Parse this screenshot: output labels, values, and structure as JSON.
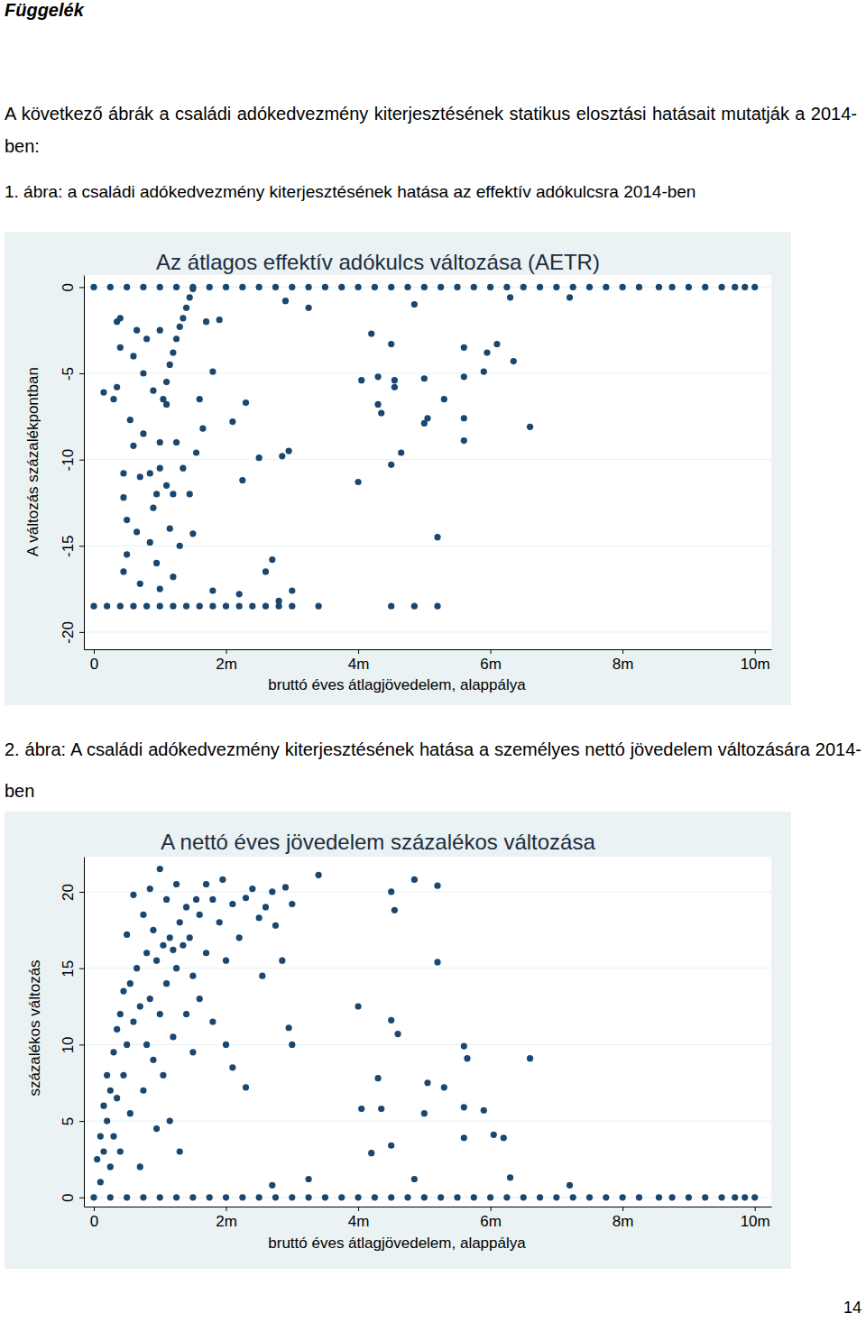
{
  "page": {
    "header": "Függelék",
    "intro": "A következő ábrák a családi adókedvezmény kiterjesztésének statikus elosztási hatásait mutatják a 2014-ben:",
    "captions": [
      "1. ábra: a családi adókedvezmény kiterjesztésének hatása az effektív adókulcsra 2014-ben",
      "2. ábra: A családi adókedvezmény kiterjesztésének hatása a személyes nettó jövedelem változására 2014-ben"
    ],
    "page_number": "14"
  },
  "chart_data": [
    {
      "type": "scatter",
      "title": "Az átlagos effektív adókulcs változása (AETR)",
      "x_label": "bruttó éves átlagjövedelem, alappálya",
      "y_label": "A változás százalékpontban",
      "color": "#1a476f",
      "marker": "circle",
      "grid": true,
      "xlim": [
        -150000,
        10250000
      ],
      "xticks": [
        0,
        {
          "value": 2000000,
          "label": "2m"
        },
        {
          "value": 4000000,
          "label": "4m"
        },
        {
          "value": 6000000,
          "label": "6m"
        },
        {
          "value": 8000000,
          "label": "8m"
        },
        {
          "value": 10000000,
          "label": "10m"
        }
      ],
      "ylim": [
        -21,
        0.7
      ],
      "yticks": [
        -20,
        -15,
        -10,
        -5,
        0
      ],
      "x": [
        0,
        250000,
        500000,
        750000,
        1000000,
        1250000,
        1500000,
        1750000,
        2000000,
        2250000,
        2500000,
        2750000,
        3000000,
        3250000,
        3500000,
        3750000,
        4000000,
        4250000,
        4500000,
        4750000,
        5000000,
        5250000,
        5500000,
        5750000,
        6000000,
        6250000,
        6500000,
        6750000,
        7000000,
        7250000,
        7500000,
        7750000,
        8000000,
        8250000,
        8550000,
        8750000,
        9000000,
        9250000,
        9500000,
        9700000,
        9850000,
        10000000,
        0,
        200000,
        400000,
        600000,
        800000,
        1000000,
        1200000,
        1400000,
        1600000,
        1800000,
        2000000,
        2200000,
        2400000,
        2600000,
        2800000,
        3000000,
        3400000,
        4500000,
        4850000,
        5200000,
        1050000,
        1100000,
        1150000,
        1200000,
        1250000,
        1300000,
        1350000,
        1400000,
        1450000,
        1500000,
        1100000,
        1000000,
        1000000,
        950000,
        150000,
        300000,
        350000,
        400000,
        350000,
        400000,
        450000,
        450000,
        500000,
        500000,
        450000,
        550000,
        600000,
        600000,
        650000,
        650000,
        700000,
        700000,
        750000,
        750000,
        800000,
        850000,
        850000,
        900000,
        900000,
        950000,
        1000000,
        1000000,
        1100000,
        1150000,
        1200000,
        1200000,
        1250000,
        1300000,
        1350000,
        1450000,
        1500000,
        1550000,
        1600000,
        1650000,
        1700000,
        1800000,
        1900000,
        2100000,
        2250000,
        2300000,
        2500000,
        2600000,
        2700000,
        2850000,
        2950000,
        3000000,
        2800000,
        2200000,
        1800000,
        2900000,
        3250000,
        4000000,
        4050000,
        4200000,
        4300000,
        4300000,
        4350000,
        4500000,
        4500000,
        4550000,
        4550000,
        4650000,
        4850000,
        5000000,
        5000000,
        5050000,
        5200000,
        5300000,
        5600000,
        5600000,
        5600000,
        5600000,
        5900000,
        5950000,
        6100000,
        6300000,
        6350000,
        6600000,
        7200000
      ],
      "values": [
        0,
        0,
        0,
        0,
        0,
        0,
        0,
        0,
        0,
        0,
        0,
        0,
        0,
        0,
        0,
        0,
        0,
        0,
        0,
        0,
        0,
        0,
        0,
        0,
        0,
        0,
        0,
        0,
        0,
        0,
        0,
        0,
        0,
        0,
        0,
        0,
        0,
        0,
        0,
        0,
        0,
        0,
        -18.5,
        -18.5,
        -18.5,
        -18.5,
        -18.5,
        -18.5,
        -18.5,
        -18.5,
        -18.5,
        -18.5,
        -18.5,
        -18.5,
        -18.5,
        -18.5,
        -18.5,
        -18.5,
        -18.5,
        -18.5,
        -18.5,
        -18.5,
        -6.5,
        -5.5,
        -4.5,
        -3.8,
        -3,
        -2.3,
        -1.8,
        -1.2,
        -0.6,
        -0.1,
        -6.8,
        -9,
        -10.5,
        -12,
        -6.1,
        -6.5,
        -5.8,
        -3.5,
        -2,
        -1.8,
        -10.8,
        -12.2,
        -13.5,
        -15.5,
        -16.5,
        -7.7,
        -9.2,
        -4,
        -2.5,
        -14.2,
        -11,
        -17.2,
        -5,
        -8.5,
        -3,
        -10.8,
        -14.8,
        -6,
        -12.8,
        -16,
        -2.5,
        -17.5,
        -11.5,
        -14,
        -12,
        -16.8,
        -9,
        -15,
        -10.5,
        -12,
        -14.3,
        -9.6,
        -6.5,
        -8.2,
        -2,
        -4.9,
        -1.9,
        -7.8,
        -11.2,
        -6.7,
        -9.9,
        -16.5,
        -15.8,
        -9.8,
        -9.5,
        -17.6,
        -18.2,
        -17.8,
        -17.6,
        -0.8,
        -1.2,
        -11.3,
        -5.4,
        -2.7,
        -5.2,
        -6.8,
        -7.3,
        -3.3,
        -10.3,
        -5.4,
        -5.8,
        -9.6,
        -1,
        -5.3,
        -7.9,
        -7.6,
        -14.5,
        -6.5,
        -3.5,
        -5.2,
        -7.6,
        -8.9,
        -4.9,
        -3.8,
        -3.3,
        -0.6,
        -4.3,
        -8.1,
        -0.6
      ]
    },
    {
      "type": "scatter",
      "title": "A nettó éves jövedelem százalékos változása",
      "x_label": "bruttó éves átlagjövedelem, alappálya",
      "y_label": "százalékos változás",
      "color": "#1a476f",
      "marker": "circle",
      "grid": true,
      "xlim": [
        -150000,
        10250000
      ],
      "xticks": [
        0,
        {
          "value": 2000000,
          "label": "2m"
        },
        {
          "value": 4000000,
          "label": "4m"
        },
        {
          "value": 6000000,
          "label": "6m"
        },
        {
          "value": 8000000,
          "label": "8m"
        },
        {
          "value": 10000000,
          "label": "10m"
        }
      ],
      "ylim": [
        -0.6,
        22.3
      ],
      "yticks": [
        0,
        5,
        10,
        15,
        20
      ],
      "x": [
        0,
        250000,
        500000,
        750000,
        1000000,
        1250000,
        1500000,
        1750000,
        2000000,
        2250000,
        2500000,
        2750000,
        3000000,
        3250000,
        3500000,
        3750000,
        4000000,
        4250000,
        4500000,
        4750000,
        5000000,
        5250000,
        5500000,
        5750000,
        6000000,
        6250000,
        6500000,
        6750000,
        7000000,
        7250000,
        7500000,
        7750000,
        8000000,
        8250000,
        8550000,
        8750000,
        9000000,
        9250000,
        9500000,
        9700000,
        9850000,
        10000000,
        50000,
        100000,
        100000,
        150000,
        150000,
        200000,
        200000,
        250000,
        250000,
        300000,
        300000,
        350000,
        350000,
        400000,
        400000,
        450000,
        450000,
        500000,
        500000,
        550000,
        550000,
        600000,
        600000,
        650000,
        700000,
        700000,
        750000,
        750000,
        800000,
        800000,
        850000,
        850000,
        900000,
        900000,
        950000,
        950000,
        1000000,
        1000000,
        1050000,
        1050000,
        1100000,
        1100000,
        1150000,
        1150000,
        1200000,
        1200000,
        1250000,
        1250000,
        1300000,
        1300000,
        1350000,
        1400000,
        1400000,
        1450000,
        1500000,
        1500000,
        1550000,
        1600000,
        1600000,
        1700000,
        1700000,
        1800000,
        1800000,
        1900000,
        1950000,
        2000000,
        2000000,
        2100000,
        2100000,
        2200000,
        2300000,
        2300000,
        2400000,
        2500000,
        2550000,
        2600000,
        2700000,
        2750000,
        2850000,
        2900000,
        2950000,
        3000000,
        3000000,
        2700000,
        3250000,
        3400000,
        4000000,
        4050000,
        4200000,
        4300000,
        4350000,
        4500000,
        4500000,
        4500000,
        4550000,
        4600000,
        4850000,
        4850000,
        5000000,
        5050000,
        5200000,
        5200000,
        5300000,
        5600000,
        5600000,
        5600000,
        5650000,
        5900000,
        6050000,
        6200000,
        6300000,
        6600000,
        7200000
      ],
      "values": [
        0,
        0,
        0,
        0,
        0,
        0,
        0,
        0,
        0,
        0,
        0,
        0,
        0,
        0,
        0,
        0,
        0,
        0,
        0,
        0,
        0,
        0,
        0,
        0,
        0,
        0,
        0,
        0,
        0,
        0,
        0,
        0,
        0,
        0,
        0,
        0,
        0,
        0,
        0,
        0,
        0,
        0,
        2.5,
        4,
        1,
        6,
        3,
        8,
        5,
        2,
        7,
        9.5,
        4,
        11,
        6.5,
        12,
        3,
        8,
        13.5,
        17.2,
        10,
        14,
        5.5,
        19.8,
        11.5,
        15,
        12.5,
        2,
        18.5,
        7,
        16,
        10,
        13,
        20.2,
        9,
        17.5,
        15.5,
        4.5,
        21.5,
        12,
        16.5,
        8,
        19.5,
        14,
        17,
        5,
        16.2,
        10.5,
        20.5,
        15,
        18,
        3,
        16.5,
        12,
        19,
        17,
        14.5,
        9.5,
        19.5,
        18.5,
        13,
        20.5,
        16,
        19.5,
        11.5,
        18,
        20.8,
        10,
        15.5,
        19.2,
        8.5,
        17,
        19.6,
        7.2,
        20.2,
        18.3,
        14.5,
        19,
        20,
        17.8,
        15.5,
        20.3,
        11.1,
        10,
        19.2,
        0.8,
        1.2,
        21.1,
        12.5,
        5.8,
        2.9,
        7.8,
        5.8,
        3.4,
        11.6,
        20,
        18.8,
        10.7,
        1.2,
        20.8,
        5.5,
        7.5,
        15.4,
        20.4,
        7.2,
        5.9,
        3.9,
        9.9,
        9.1,
        5.7,
        4.1,
        3.9,
        1.3,
        9.1,
        0.8
      ]
    }
  ]
}
